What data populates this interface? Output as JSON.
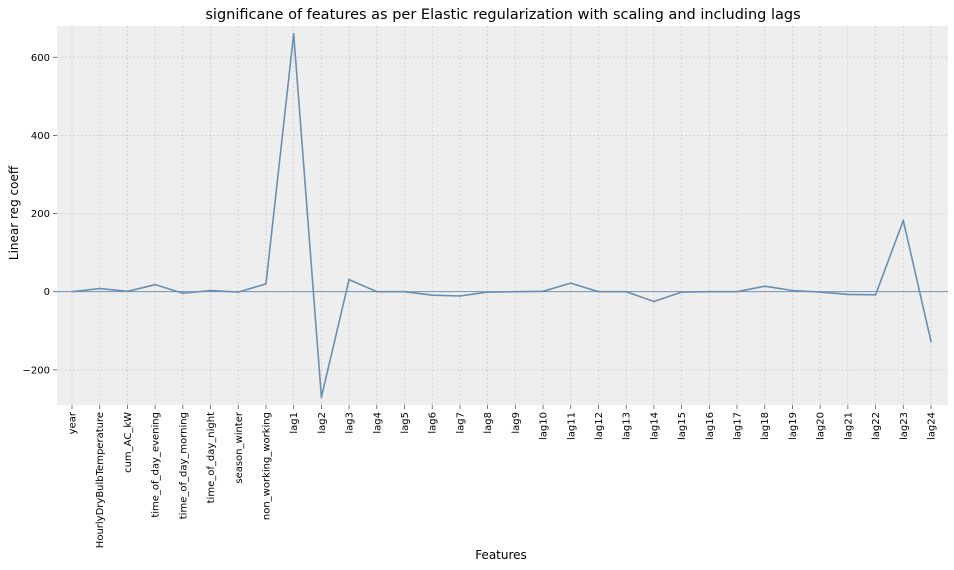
{
  "chart_data": {
    "type": "line",
    "title": "significane of features as per Elastic regularization with scaling and including lags",
    "xlabel": "Features",
    "ylabel": "Linear reg coeff",
    "ylim": [
      -290,
      680
    ],
    "yticks": [
      -200,
      0,
      200,
      400,
      600
    ],
    "grid": true,
    "legend": "none",
    "colors": {
      "line": "#6b8eb3",
      "background": "#eeeeee",
      "grid": "#c8c8c8",
      "zero_line": "#5b86ae"
    },
    "categories": [
      "year",
      "HourlyDryBulbTemperature",
      "cum_AC_kW",
      "time_of_day_evening",
      "time_of_day_morning",
      "time_of_day_night",
      "season_winter",
      "non_working_working",
      "lag1",
      "lag2",
      "lag3",
      "lag4",
      "lag5",
      "lag6",
      "lag7",
      "lag8",
      "lag9",
      "lag10",
      "lag11",
      "lag12",
      "lag13",
      "lag14",
      "lag15",
      "lag16",
      "lag17",
      "lag18",
      "lag19",
      "lag20",
      "lag21",
      "lag22",
      "lag23",
      "lag24"
    ],
    "series": [
      {
        "values": [
          0,
          8,
          1,
          18,
          -4,
          3,
          -1,
          20,
          660,
          -270,
          31,
          0,
          0,
          -9,
          -11,
          -1,
          0,
          1,
          22,
          0,
          0,
          -25,
          -1,
          0,
          0,
          14,
          3,
          -1,
          -7,
          -8,
          182,
          -127
        ]
      }
    ]
  }
}
